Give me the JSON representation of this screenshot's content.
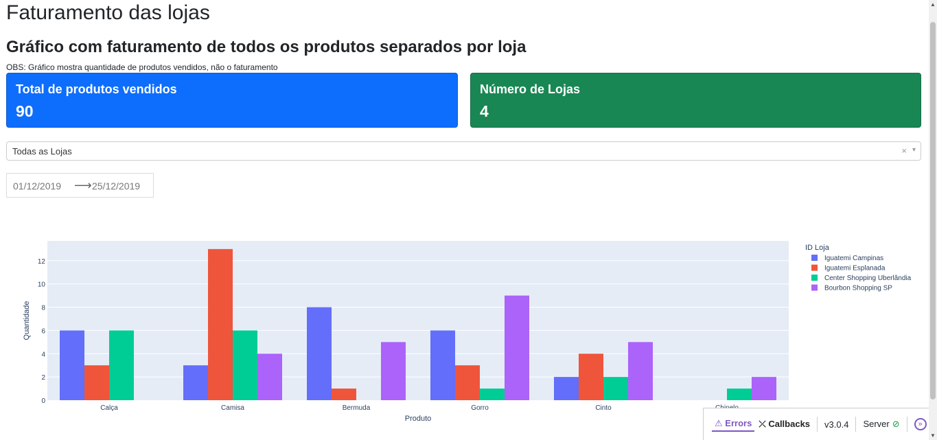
{
  "page": {
    "title": "Faturamento das lojas",
    "subtitle": "Gráfico com faturamento de todos os produtos separados por loja",
    "obs": "OBS: Gráfico mostra quantidade de produtos vendidos, não o faturamento"
  },
  "cards": {
    "total_label": "Total de produtos vendidos",
    "total_value": "90",
    "stores_label": "Número de Lojas",
    "stores_value": "4"
  },
  "colors": {
    "card_blue": "#0d6efd",
    "card_green": "#198754",
    "plot_bg": "#e5ecf6",
    "accent": "#7e57c2"
  },
  "filters": {
    "store_dropdown_value": "Todas as Lojas",
    "clear_icon": "×",
    "arrow_icon": "chevron-down-icon",
    "date_start": "01/12/2019",
    "date_end": "25/12/2019",
    "date_sep_icon": "arrow-right-icon"
  },
  "chart_data": {
    "type": "bar",
    "categories": [
      "Calça",
      "Camisa",
      "Bermuda",
      "Gorro",
      "Cinto",
      "Chinelo"
    ],
    "series": [
      {
        "name": "Iguatemi Campinas",
        "color": "#636efa",
        "values": [
          6,
          3,
          8,
          6,
          2,
          0
        ]
      },
      {
        "name": "Iguatemi Esplanada",
        "color": "#ef553b",
        "values": [
          3,
          13,
          1,
          3,
          4,
          0
        ]
      },
      {
        "name": "Center Shopping Uberlândia",
        "color": "#00cc96",
        "values": [
          6,
          6,
          0,
          1,
          2,
          1
        ]
      },
      {
        "name": "Bourbon Shopping SP",
        "color": "#ab63fa",
        "values": [
          0,
          4,
          5,
          9,
          5,
          2
        ]
      }
    ],
    "xlabel": "Produto",
    "ylabel": "Quantidade",
    "legend_title": "ID Loja",
    "legend_position": "right",
    "yticks": [
      0,
      2,
      4,
      6,
      8,
      10,
      12
    ],
    "ylim": [
      0,
      13.7
    ],
    "grid": true
  },
  "devtools": {
    "errors_label": "Errors",
    "callbacks_label": "Callbacks",
    "version": "v3.0.4",
    "server_label": "Server",
    "server_icon": "check-circle-icon",
    "toggle_icon": "double-chevron-right-icon"
  }
}
